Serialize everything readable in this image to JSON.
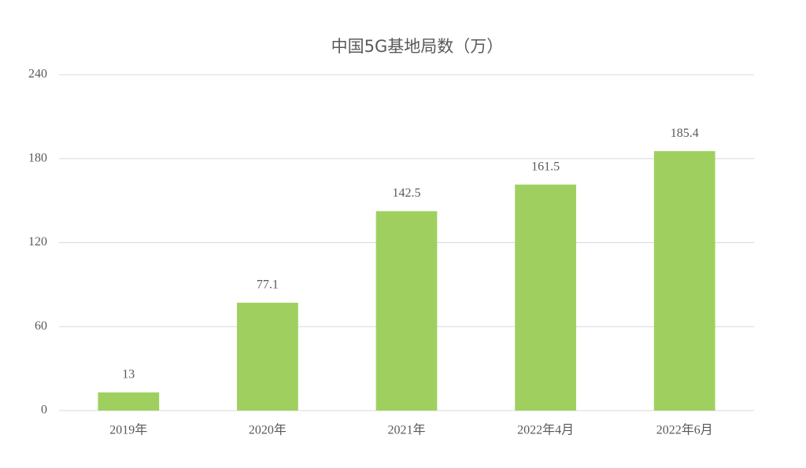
{
  "chart_data": {
    "type": "bar",
    "title": "中国5G基地局数（万）",
    "categories": [
      "2019年",
      "2020年",
      "2021年",
      "2022年4月",
      "2022年6月"
    ],
    "values": [
      13,
      77.1,
      142.5,
      161.5,
      185.4
    ],
    "color": "#9fd05f",
    "ylim": [
      0,
      240
    ],
    "yticks": [
      0,
      60,
      120,
      180,
      240
    ],
    "grid": true
  }
}
